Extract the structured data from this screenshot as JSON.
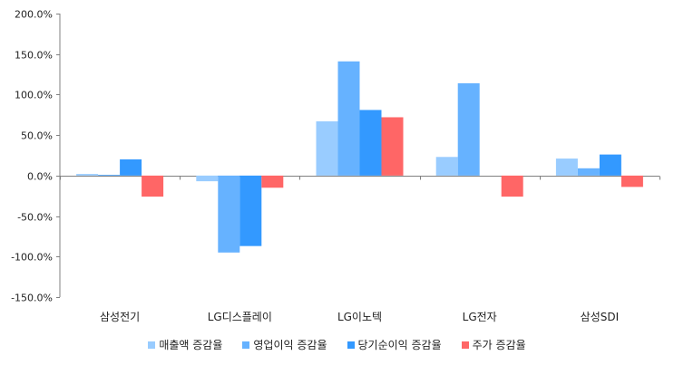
{
  "chart_data": {
    "type": "bar",
    "categories": [
      "삼성전기",
      "LG디스플레이",
      "LG이노텍",
      "LG전자",
      "삼성SDI"
    ],
    "series": [
      {
        "name": "매출액 증감율",
        "color": "#99ccff",
        "values": [
          2,
          -7,
          67,
          23,
          21
        ]
      },
      {
        "name": "영업이익 증감율",
        "color": "#66b2ff",
        "values": [
          1,
          -95,
          141,
          114,
          9
        ]
      },
      {
        "name": "당기순이익 증감율",
        "color": "#3399ff",
        "values": [
          20,
          -87,
          81,
          0,
          26
        ]
      },
      {
        "name": "주가 증감율",
        "color": "#ff6666",
        "values": [
          -26,
          -15,
          72,
          -26,
          -14
        ]
      }
    ],
    "ylim": [
      -150,
      200
    ],
    "yticks": [
      -150,
      -100,
      -50,
      0,
      50,
      100,
      150,
      200
    ],
    "ytick_labels": [
      "-150.0%",
      "-100.0%",
      "-50.0%",
      "0.0%",
      "50.0%",
      "100.0%",
      "150.0%",
      "200.0%"
    ],
    "grid": false,
    "legend_position": "bottom"
  }
}
